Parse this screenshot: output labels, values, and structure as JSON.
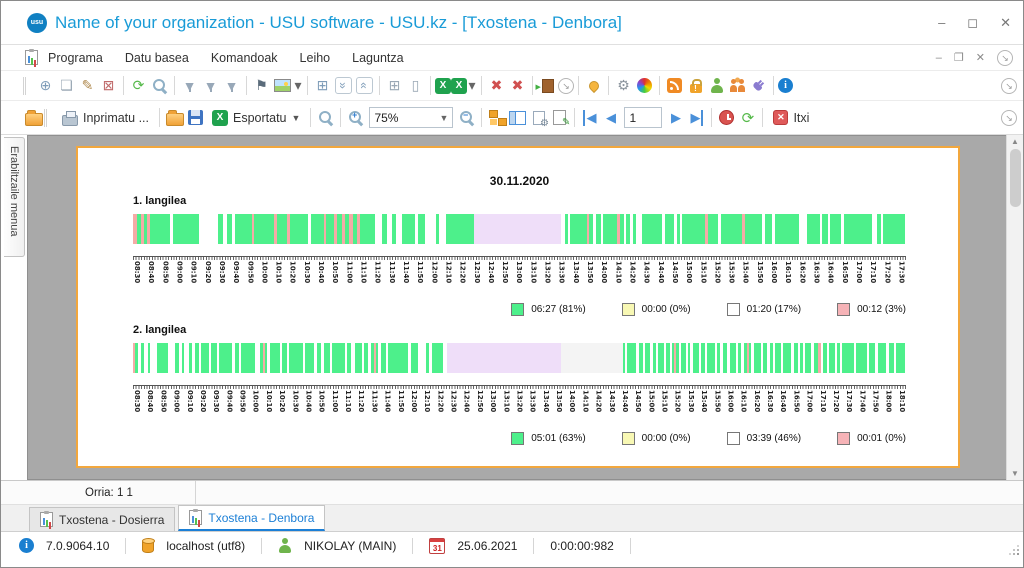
{
  "window": {
    "title": "Name of your organization - USU software - USU.kz - [Txostena - Denbora]",
    "logo_text": "usu"
  },
  "menu": {
    "items": [
      "Programa",
      "Datu basea",
      "Komandoak",
      "Leiho",
      "Laguntza"
    ]
  },
  "toolbar_main": {
    "items": [
      {
        "n": "add-record",
        "g": "⊕",
        "c": "#7f9db9"
      },
      {
        "n": "copy-record",
        "g": "❏",
        "c": "#9aa8b5"
      },
      {
        "n": "edit-record",
        "g": "✎",
        "c": "#b08a4f"
      },
      {
        "n": "delete-record",
        "g": "⊠",
        "c": "#c06a6a"
      },
      "|",
      {
        "n": "refresh-data",
        "g": "⟳",
        "c": "#55b94a"
      },
      {
        "n": "search",
        "cls": "mag"
      },
      "|",
      {
        "n": "filter",
        "g": "▼",
        "c": "#98a8b8",
        "cls": "fun"
      },
      {
        "n": "filter-edit",
        "g": "▼",
        "c": "#98a8b8",
        "cls": "fun"
      },
      {
        "n": "filter-check",
        "g": "▼",
        "c": "#98a8b8",
        "cls": "fun"
      },
      "|",
      {
        "n": "flag",
        "g": "⚑",
        "c": "#5a6b7a"
      },
      {
        "n": "image",
        "cls": "pic"
      },
      {
        "n": "image-caret",
        "g": "▾",
        "c": "#666",
        "narrow": true
      },
      "|",
      {
        "n": "table-insert",
        "g": "⊞",
        "c": "#7f9db9"
      },
      {
        "n": "collapse-all",
        "g": "»",
        "c": "#7f9db9",
        "cls": "r90 boxed"
      },
      {
        "n": "expand-all",
        "g": "«",
        "c": "#7f9db9",
        "cls": "r90 boxed"
      },
      "|",
      {
        "n": "add-row",
        "g": "⊞",
        "c": "#9aa8b5"
      },
      {
        "n": "blank-page",
        "g": "▯",
        "c": "#9aa8b5"
      },
      "|",
      {
        "n": "export-excel",
        "g": "X",
        "cls": "xls"
      },
      {
        "n": "export-excel-options",
        "g": "X",
        "cls": "xls"
      },
      {
        "n": "export-caret",
        "g": "▾",
        "c": "#666",
        "narrow": true
      },
      "|",
      {
        "n": "close-window",
        "g": "✖",
        "c": "#d05050"
      },
      {
        "n": "close-all-windows",
        "g": "✖",
        "c": "#d05050"
      },
      "|",
      {
        "n": "exit-door",
        "cls": "door"
      },
      {
        "n": "overflow-1",
        "g": "↘",
        "cls": "circ"
      },
      "|",
      {
        "n": "location-pin",
        "cls": "pin"
      },
      "|",
      {
        "n": "settings-gear",
        "g": "⚙",
        "c": "#8a939c"
      },
      {
        "n": "color-wheel",
        "cls": "wheel"
      },
      "|",
      {
        "n": "rss-feed",
        "cls": "rss"
      },
      {
        "n": "security-lock",
        "cls": "lock"
      },
      {
        "n": "user-key",
        "cls": "person"
      },
      {
        "n": "user-groups",
        "cls": "people"
      },
      {
        "n": "plugin-plug",
        "cls": "plug"
      },
      "|",
      {
        "n": "about-info",
        "g": "i",
        "cls": "info"
      }
    ]
  },
  "toolbar_preview": {
    "print_label": "Inprimatu ...",
    "export_label": "Esportatu",
    "zoom_value": "75%",
    "page_value": "1",
    "close_label": "Itxi"
  },
  "sidebar": {
    "label": "Erabiltzaile menua"
  },
  "report": {
    "page_status": "Orria: 1 1",
    "date_title": "30.11.2020"
  },
  "segment_colors": {
    "g": "#4df08b",
    "p": "#f4aba6",
    "w": "#ffffff",
    "l": "#efdef9",
    "G": "#f4f4f4",
    "y": "#f8f8b4"
  },
  "chart_data": [
    {
      "type": "timeline-bar",
      "title": "1. langilea",
      "date": "30.11.2020",
      "axis": {
        "start": "08:30",
        "end": "17:30",
        "step_minutes": 10
      },
      "legend": [
        {
          "color": "#4df08b",
          "label": "06:27 (81%)"
        },
        {
          "color": "#f8f8b4",
          "label": "00:00 (0%)"
        },
        {
          "color": "#ffffff",
          "label": "01:20 (17%)"
        },
        {
          "color": "#f6b3b7",
          "label": "00:12 (3%)"
        }
      ],
      "segments": "p.5 g.5 p.4 g.4 p.4 g2.6 w.4 g3.4 w2.4 g.7 w.5 g.6 w.4 g2.2 p.3 g2.6 p.3 g1.4 p.3 g2.4 w.4 g1.6 p.3 g1 p.4 g.7 p.3 g.6 p.5 g.5 p.4 g2 w.8 g.7 w.6 g.5 w.9 g1.6 w.4 g.9 w1.4 g.4 w.9 g3.7 l11.2 w.5 g.4 w.3 g2.2 p.3 g.5 w.4 g.6 w.3 g1.8 p.3 g.6 w.3 g.5 w.4 g.3 w.8 g2.6 w.4 g1.2 w.3 g.4 w.3 g3 p.3 g1.4 w.3 g2.8 p.3 g2.2 w.4 g1 w.3 g3.2 w1 g1.6 w.3 g.8 w.3 g1.4 w.4 g3.6 w.6 g.5 w.3 g2.9"
    },
    {
      "type": "timeline-bar",
      "title": "2. langilea",
      "date": "30.11.2020",
      "axis": {
        "start": "08:30",
        "end": "18:10",
        "step_minutes": 10
      },
      "legend": [
        {
          "color": "#4df08b",
          "label": "05:01 (63%)"
        },
        {
          "color": "#f8f8b4",
          "label": "00:00 (0%)"
        },
        {
          "color": "#ffffff",
          "label": "03:39 (46%)"
        },
        {
          "color": "#f6b3b7",
          "label": "00:01 (0%)"
        }
      ],
      "segments": "p.3 g.4 w.4 g.3 w.5 g.3 w.9 g1.4 w1 g.4 w.4 g.3 w.6 g.5 w.4 g.4 w.3 g1 w.3 g.8 w.3 g1.6 w.4 g.5 w.3 g1.8 w.6 g.4 p.3 g.3 w.4 g1.2 w.3 g.6 w.3 g1.8 w.3 g1.2 w.4 g.5 w.3 g.8 w.3 g1.7 w.3 g.5 w.5 g.9 w.3 g.5 w.3 g.4 p.3 g.3 w.4 g.6 w.3 g2.6 w.3 g.9 w1.1 g.3 w.5 g1.4 w.5 l14.7 G8 g.3 w.3 g1.2 w.3 g.5 w.3 g.6 w.5 g.3 w.3 g.8 w.3 g.4 w.3 g.3 p.2 g.4 w.3 g.6 w.3 g.3 w.4 g.7 w.3 g.5 w.3 g1 w.3 g.4 w.3 g.6 w.3 g.8 w.3 g.4 w.3 g.5 p.2 g.3 w.3 g.9 w.3 g.5 w.4 g.4 w.3 g.7 w.3 g1.1 w.3 g.5 w.3 g.4 w.3 g.8 w.3 g.6 p.3 w.3 g.5 w.3 g.7 w.3 g.4 w.3 g.6 g.9 w.3 g1.4 w.3 g.8 w.3 g1.1 w.3 g.7 w.3 g1.1"
    }
  ],
  "tabs": [
    {
      "label": "Txostena - Dosierra",
      "active": false
    },
    {
      "label": "Txostena - Denbora",
      "active": true
    }
  ],
  "statusbar": {
    "version": "7.0.9064.10",
    "database": "localhost (utf8)",
    "user": "NIKOLAY (MAIN)",
    "calendar_day": "31",
    "date": "25.06.2021",
    "time": "0:00:00:982"
  }
}
